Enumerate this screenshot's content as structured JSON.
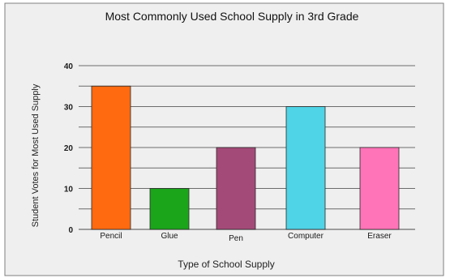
{
  "chart_data": {
    "type": "bar",
    "title": "Most Commonly Used School Supply in 3rd Grade",
    "xlabel": "Type of School Supply",
    "ylabel": "Student Votes for Most Used Supply",
    "categories": [
      "Pencil",
      "Glue",
      "Pen",
      "Computer",
      "Eraser"
    ],
    "values": [
      35,
      10,
      20,
      30,
      20
    ],
    "colors": [
      "#ff6a10",
      "#1aa51a",
      "#a44a78",
      "#4fd3e6",
      "#ff74b8"
    ],
    "ylim": [
      0,
      40
    ],
    "yticks": [
      0,
      10,
      20,
      30,
      40
    ],
    "grid": true,
    "gridlines_minor_step": 5,
    "frame_color": "#7f7f7f",
    "background_color": "#efefef"
  }
}
